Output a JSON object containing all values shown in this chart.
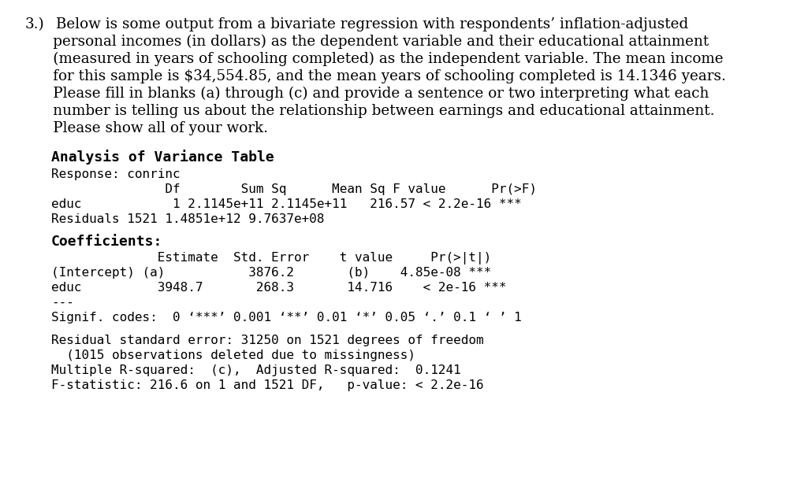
{
  "bg_color": "#ffffff",
  "text_color": "#000000",
  "intro_line1_num": "3.)",
  "intro_line1_text": "  Below is some output from a bivariate regression with respondents’ inflation-adjusted",
  "intro_continued": [
    "      personal incomes (in dollars) as the dependent variable and their educational attainment",
    "      (measured in years of schooling completed) as the independent variable. The mean income",
    "      for this sample is $34,554.85, and the mean years of schooling completed is 14.1346 years.",
    "      Please fill in blanks (a) through (c) and provide a sentence or two interpreting what each",
    "      number is telling us about the relationship between earnings and educational attainment.",
    "      Please show all of your work."
  ],
  "anova_title": "Analysis of Variance Table",
  "anova_response": "Response: conrinc",
  "anova_header": "               Df        Sum Sq      Mean Sq F value      Pr(>F)",
  "anova_educ": "educ            1 2.1145e+11 2.1145e+11   216.57 < 2.2e-16 ***",
  "anova_resid": "Residuals 1521 1.4851e+12 9.7637e+08",
  "coeff_title": "Coefficients:",
  "coeff_header": "              Estimate  Std. Error    t value     Pr(>|t|)",
  "coeff_int": "(Intercept) (a)           3876.2       (b)    4.85e-08 ***",
  "coeff_educ": "educ          3948.7       268.3       14.716    < 2e-16 ***",
  "sep_line": "---",
  "signif_line": "Signif. codes:  0 ‘***’ 0.001 ‘**’ 0.01 ‘*’ 0.05 ‘.’ 0.1 ‘ ’ 1",
  "footer1": "Residual standard error: 31250 on 1521 degrees of freedom",
  "footer2": "  (1015 observations deleted due to missingness)",
  "footer3": "Multiple R-squared:  (c),  Adjusted R-squared:  0.1241",
  "footer4": "F-statistic: 216.6 on 1 and 1521 DF,   p-value: < 2.2e-16",
  "serif_font": "DejaVu Serif",
  "mono_font": "DejaVu Sans Mono",
  "intro_fontsize": 13.2,
  "mono_fontsize": 11.5,
  "bold_fontsize": 13.0
}
